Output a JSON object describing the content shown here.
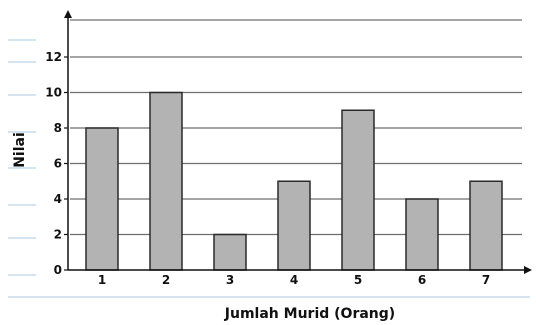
{
  "chart_data": {
    "type": "bar",
    "title": "",
    "xlabel": "Jumlah Murid (Orang)",
    "ylabel": "Nilai",
    "categories": [
      "1",
      "2",
      "3",
      "4",
      "5",
      "6",
      "7"
    ],
    "values": [
      8,
      10,
      2,
      5,
      9,
      4,
      5
    ],
    "ylim": [
      0,
      14
    ],
    "yticks": [
      "0",
      "2",
      "4",
      "6",
      "8",
      "10",
      "12"
    ],
    "grid": true,
    "legend": "none",
    "colors": {
      "bar_fill": "#b3b3b3",
      "bar_stroke": "#2a2a2a",
      "grid": "#6e6e6e",
      "axis": "#111111",
      "decor": "#c9dbea"
    }
  }
}
